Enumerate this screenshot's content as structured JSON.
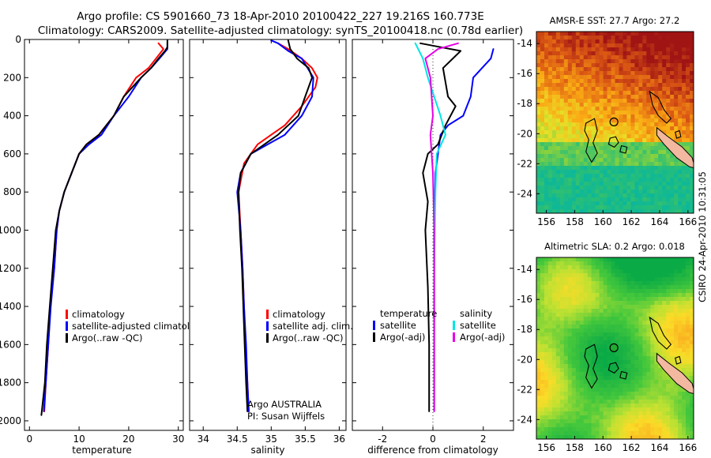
{
  "header": {
    "title_line1": "Argo profile: CS 5901660_73 18-Apr-2010 20100422_227 19.216S 160.773E",
    "title_line2": "Climatology: CARS2009. Satellite-adjusted climatology: synTS_20100418.nc (0.78d earlier)"
  },
  "footer": {
    "credit": "CSIRO 24-Apr-2010 10:31:05"
  },
  "colors": {
    "climatology": "#ff0000",
    "satellite": "#0000ff",
    "argo": "#000000",
    "salinity_satellite": "#00e5e5",
    "salinity_argo": "#e600e6"
  },
  "chart_data": [
    {
      "type": "line",
      "xlabel": "temperature",
      "ylabel": "",
      "xlim": [
        -1,
        31
      ],
      "ylim": [
        2050,
        0
      ],
      "xticks": [
        0,
        10,
        20,
        30
      ],
      "yticks": [
        0,
        200,
        400,
        600,
        800,
        1000,
        1200,
        1400,
        1600,
        1800,
        2000
      ],
      "legend": [
        "climatology",
        "satellite-adjusted climatology",
        "Argo(..raw -QC)"
      ],
      "series": [
        {
          "name": "climatology",
          "color": "#ff0000",
          "points": [
            [
              26,
              20
            ],
            [
              27,
              50
            ],
            [
              25.5,
              100
            ],
            [
              24,
              150
            ],
            [
              21.5,
              200
            ],
            [
              19,
              300
            ],
            [
              17,
              400
            ],
            [
              14,
              500
            ],
            [
              11.5,
              550
            ],
            [
              10,
              600
            ],
            [
              8.5,
              700
            ],
            [
              7,
              800
            ],
            [
              6,
              900
            ],
            [
              5.5,
              1000
            ],
            [
              5,
              1200
            ],
            [
              4.2,
              1400
            ],
            [
              3.8,
              1600
            ],
            [
              3.3,
              1800
            ],
            [
              3,
              1950
            ]
          ]
        },
        {
          "name": "satellite-adjusted climatology",
          "color": "#0000ff",
          "points": [
            [
              27.8,
              20
            ],
            [
              27.8,
              50
            ],
            [
              26.2,
              100
            ],
            [
              24.5,
              150
            ],
            [
              22.5,
              200
            ],
            [
              20,
              300
            ],
            [
              17,
              400
            ],
            [
              14.5,
              500
            ],
            [
              12,
              550
            ],
            [
              10,
              600
            ],
            [
              8.5,
              700
            ],
            [
              7,
              800
            ],
            [
              6,
              900
            ],
            [
              5.5,
              1000
            ],
            [
              5,
              1200
            ],
            [
              4.3,
              1400
            ],
            [
              3.8,
              1600
            ],
            [
              3.3,
              1800
            ],
            [
              2.9,
              1950
            ]
          ]
        },
        {
          "name": "Argo(..raw -QC)",
          "color": "#000000",
          "points": [
            [
              27.8,
              5
            ],
            [
              27.8,
              40
            ],
            [
              27.3,
              60
            ],
            [
              26,
              100
            ],
            [
              24.5,
              150
            ],
            [
              22.5,
              200
            ],
            [
              19,
              300
            ],
            [
              17,
              400
            ],
            [
              14,
              500
            ],
            [
              11.5,
              550
            ],
            [
              10,
              600
            ],
            [
              8.5,
              700
            ],
            [
              7,
              800
            ],
            [
              6,
              900
            ],
            [
              5.3,
              1000
            ],
            [
              4.7,
              1200
            ],
            [
              4.1,
              1400
            ],
            [
              3.5,
              1600
            ],
            [
              3.1,
              1800
            ],
            [
              2.4,
              1970
            ]
          ]
        }
      ]
    },
    {
      "type": "line",
      "xlabel": "salinity",
      "ylabel": "",
      "xlim": [
        33.8,
        36.1
      ],
      "ylim": [
        2050,
        0
      ],
      "xticks": [
        34,
        34.5,
        35,
        35.5,
        36
      ],
      "legend": [
        "climatology",
        "satellite adj. clim.",
        "Argo(..raw -QC)"
      ],
      "annotation": [
        "Argo AUSTRALIA",
        "PI: Susan Wijffels"
      ],
      "series": [
        {
          "name": "climatology",
          "color": "#ff0000",
          "points": [
            [
              35.1,
              20
            ],
            [
              35.25,
              50
            ],
            [
              35.45,
              100
            ],
            [
              35.6,
              150
            ],
            [
              35.68,
              200
            ],
            [
              35.65,
              250
            ],
            [
              35.45,
              350
            ],
            [
              35.2,
              450
            ],
            [
              35.0,
              500
            ],
            [
              34.8,
              550
            ],
            [
              34.6,
              650
            ],
            [
              34.52,
              800
            ],
            [
              34.55,
              1000
            ],
            [
              34.58,
              1200
            ],
            [
              34.6,
              1400
            ],
            [
              34.62,
              1600
            ],
            [
              34.65,
              1800
            ],
            [
              34.67,
              1950
            ]
          ]
        },
        {
          "name": "satellite adj. clim.",
          "color": "#0000ff",
          "points": [
            [
              35.0,
              5
            ],
            [
              35.1,
              20
            ],
            [
              35.25,
              60
            ],
            [
              35.45,
              100
            ],
            [
              35.62,
              200
            ],
            [
              35.6,
              300
            ],
            [
              35.45,
              400
            ],
            [
              35.2,
              500
            ],
            [
              34.95,
              550
            ],
            [
              34.7,
              600
            ],
            [
              34.55,
              700
            ],
            [
              34.5,
              800
            ],
            [
              34.55,
              1000
            ],
            [
              34.58,
              1200
            ],
            [
              34.6,
              1400
            ],
            [
              34.63,
              1600
            ],
            [
              34.65,
              1800
            ],
            [
              34.67,
              1950
            ]
          ]
        },
        {
          "name": "Argo(..raw -QC)",
          "color": "#000000",
          "points": [
            [
              35.25,
              5
            ],
            [
              35.28,
              50
            ],
            [
              35.38,
              100
            ],
            [
              35.55,
              150
            ],
            [
              35.6,
              200
            ],
            [
              35.5,
              300
            ],
            [
              35.4,
              400
            ],
            [
              35.1,
              500
            ],
            [
              34.9,
              550
            ],
            [
              34.7,
              600
            ],
            [
              34.55,
              700
            ],
            [
              34.52,
              800
            ],
            [
              34.54,
              1000
            ],
            [
              34.57,
              1200
            ],
            [
              34.59,
              1400
            ],
            [
              34.61,
              1600
            ],
            [
              34.63,
              1800
            ],
            [
              34.65,
              1950
            ]
          ]
        }
      ]
    },
    {
      "type": "line",
      "xlabel": "difference from climatology",
      "ylabel": "",
      "xlim": [
        -3.2,
        3.2
      ],
      "ylim": [
        2050,
        0
      ],
      "xticks": [
        -2,
        0,
        2
      ],
      "legend": {
        "temperature": {
          "heading": "temperature",
          "items": [
            "satellite",
            "Argo(-adj)"
          ]
        },
        "salinity": {
          "heading": "salinity",
          "items": [
            "satellite",
            "Argo(-adj)"
          ]
        }
      },
      "series": [
        {
          "name": "temperature satellite",
          "color": "#0000ff",
          "points": [
            [
              2.4,
              50
            ],
            [
              2.3,
              100
            ],
            [
              1.6,
              200
            ],
            [
              1.5,
              300
            ],
            [
              1.2,
              400
            ],
            [
              0.6,
              450
            ],
            [
              0.3,
              500
            ],
            [
              0.1,
              700
            ],
            [
              0.05,
              1000
            ],
            [
              0.05,
              1400
            ],
            [
              0.05,
              1800
            ],
            [
              0.05,
              1950
            ]
          ]
        },
        {
          "name": "temperature Argo(-adj)",
          "color": "#000000",
          "points": [
            [
              -0.5,
              20
            ],
            [
              0.3,
              40
            ],
            [
              1.1,
              60
            ],
            [
              0.4,
              150
            ],
            [
              0.6,
              300
            ],
            [
              0.9,
              350
            ],
            [
              0.5,
              450
            ],
            [
              0.2,
              550
            ],
            [
              -0.2,
              600
            ],
            [
              -0.4,
              700
            ],
            [
              -0.2,
              850
            ],
            [
              -0.3,
              1000
            ],
            [
              -0.2,
              1300
            ],
            [
              -0.15,
              1600
            ],
            [
              -0.15,
              1800
            ],
            [
              -0.15,
              1950
            ]
          ]
        },
        {
          "name": "salinity satellite",
          "color": "#00e5e5",
          "points": [
            [
              -0.7,
              20
            ],
            [
              -0.4,
              100
            ],
            [
              -0.2,
              200
            ],
            [
              0.3,
              400
            ],
            [
              0.5,
              500
            ],
            [
              0.15,
              600
            ],
            [
              0.1,
              800
            ],
            [
              0.05,
              1200
            ],
            [
              0.05,
              1600
            ],
            [
              0.05,
              1950
            ]
          ]
        },
        {
          "name": "salinity Argo(-adj)",
          "color": "#e600e6",
          "points": [
            [
              1.0,
              20
            ],
            [
              0.2,
              50
            ],
            [
              -0.3,
              100
            ],
            [
              -0.1,
              200
            ],
            [
              0.0,
              400
            ],
            [
              -0.1,
              500
            ],
            [
              0.0,
              700
            ],
            [
              0.05,
              1000
            ],
            [
              0.05,
              1400
            ],
            [
              0.05,
              1800
            ],
            [
              0.05,
              1950
            ]
          ]
        }
      ]
    },
    {
      "type": "heatmap",
      "title": "AMSR-E SST: 27.7 Argo: 27.2",
      "xlim": [
        155.3,
        166.4
      ],
      "ylim": [
        -25.3,
        -13.2
      ],
      "xticks": [
        156,
        158,
        160,
        162,
        164,
        166
      ],
      "yticks": [
        -14,
        -16,
        -18,
        -20,
        -22,
        -24
      ],
      "colorscale": "warm",
      "argo_point": {
        "lon": 160.773,
        "lat": -19.216
      }
    },
    {
      "type": "heatmap",
      "title": "Altimetric SLA: 0.2 Argo: 0.018",
      "xlim": [
        155.3,
        166.4
      ],
      "ylim": [
        -25.3,
        -13.2
      ],
      "xticks": [
        156,
        158,
        160,
        162,
        164,
        166
      ],
      "yticks": [
        -14,
        -16,
        -18,
        -20,
        -22,
        -24
      ],
      "colorscale": "sla",
      "argo_point": {
        "lon": 160.773,
        "lat": -19.216
      }
    }
  ]
}
